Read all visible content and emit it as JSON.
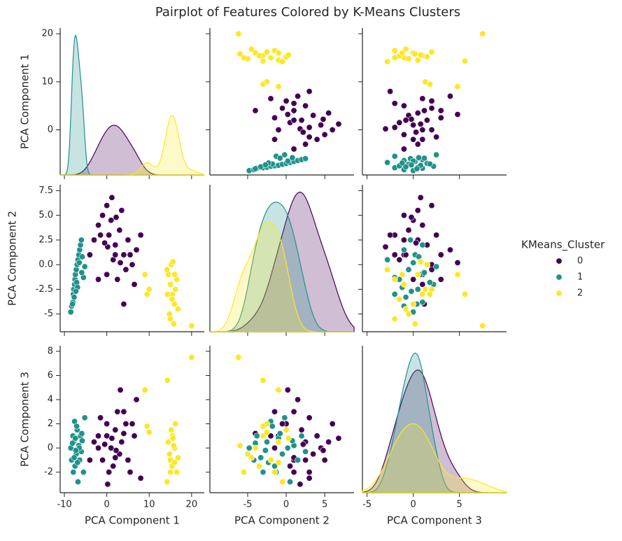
{
  "chart_data": {
    "type": "pairplot",
    "title": "Pairplot of Features Colored by K-Means Clusters",
    "legend_title": "KMeans_Cluster",
    "legend_position": "right",
    "variables": [
      {
        "label": "PCA Component 1",
        "xlim": [
          -11,
          23
        ],
        "xticks": [
          -10,
          0,
          10,
          20
        ],
        "ylim": [
          -9.4,
          21.2
        ],
        "yticks": [
          0,
          10,
          20
        ]
      },
      {
        "label": "PCA Component 2",
        "xlim": [
          -9.9,
          8.8
        ],
        "xticks": [
          -5,
          0,
          5
        ],
        "ylim": [
          -6.8,
          8.1
        ],
        "yticks": [
          -5.0,
          {
            "value": -2.5,
            "label": "-2.5"
          },
          {
            "value": 0,
            "label": "0.0"
          },
          {
            "value": 2.5,
            "label": "2.5"
          },
          {
            "value": 5,
            "label": "5.0"
          },
          {
            "value": 7.5,
            "label": "7.5"
          }
        ]
      },
      {
        "label": "PCA Component 3",
        "xlim": [
          -5.5,
          10.1
        ],
        "xticks": [
          -5,
          0,
          5
        ],
        "ylim": [
          -3.7,
          8.46
        ],
        "yticks": [
          -2,
          0,
          2,
          4,
          6,
          8
        ]
      }
    ],
    "series": [
      {
        "name": "0",
        "color": "#440154",
        "points": [
          [
            -3,
            2.5,
            0.5
          ],
          [
            -2,
            4,
            1
          ],
          [
            -1,
            5,
            -1
          ],
          [
            0,
            6,
            2
          ],
          [
            0.5,
            3,
            -2
          ],
          [
            1,
            4.5,
            0
          ],
          [
            2,
            2,
            1.5
          ],
          [
            3,
            3.5,
            -0.5
          ],
          [
            4,
            1,
            3
          ],
          [
            5,
            2.5,
            -1
          ],
          [
            6,
            0,
            2
          ],
          [
            7,
            1.5,
            4
          ],
          [
            8,
            3,
            -2.5
          ],
          [
            -4,
            1,
            -1
          ],
          [
            -2,
            -1.5,
            0
          ],
          [
            0,
            -1,
            1
          ],
          [
            1.5,
            0.5,
            -1.5
          ],
          [
            2.5,
            -1.5,
            3
          ],
          [
            3.5,
            5.5,
            0.5
          ],
          [
            4.5,
            -0.5,
            2
          ],
          [
            5.5,
            1,
            -2
          ],
          [
            6.5,
            -2,
            1
          ],
          [
            -1.5,
            3,
            2.5
          ],
          [
            0.2,
            1.8,
            -3
          ],
          [
            1.2,
            6.8,
            0.8
          ],
          [
            2.2,
            4.8,
            -0.2
          ],
          [
            3.2,
            0.2,
            4.8
          ],
          [
            -0.5,
            2.2,
            0.3
          ],
          [
            2,
            1,
            -0.8
          ],
          [
            4,
            -4,
            1.2
          ]
        ]
      },
      {
        "name": "1",
        "color": "#21918c",
        "points": [
          [
            -8.5,
            -4.8,
            0
          ],
          [
            -8.3,
            -4.2,
            -1
          ],
          [
            -8,
            -3.8,
            1
          ],
          [
            -7.9,
            -3,
            -2
          ],
          [
            -7.8,
            -2.5,
            0.5
          ],
          [
            -7.6,
            -2,
            2.2
          ],
          [
            -7.5,
            -1.5,
            -1.5
          ],
          [
            -7.4,
            -1,
            0.8
          ],
          [
            -7.2,
            -0.5,
            -0.5
          ],
          [
            -7,
            0,
            1.5
          ],
          [
            -6.8,
            0.5,
            -2.8
          ],
          [
            -6.6,
            1,
            0.2
          ],
          [
            -6.4,
            1.5,
            -1
          ],
          [
            -6.2,
            2,
            1
          ],
          [
            -6,
            2.5,
            -0.3
          ],
          [
            -5.8,
            0.8,
            0.6
          ],
          [
            -5.5,
            -1.3,
            -2
          ],
          [
            -5.2,
            -0.2,
            2.5
          ],
          [
            -7.7,
            -3.3,
            -0.8
          ],
          [
            -8.1,
            -4,
            0.4
          ],
          [
            -7.1,
            -1.8,
            1.8
          ],
          [
            -6.9,
            -2.3,
            -1.2
          ],
          [
            -6.5,
            0.2,
            0
          ],
          [
            -5.9,
            -0.8,
            1.2
          ],
          [
            -7.3,
            -2.7,
            -0.2
          ]
        ]
      },
      {
        "name": "2",
        "color": "#fde725",
        "points": [
          [
            14.5,
            -1,
            0.5
          ],
          [
            15,
            -2,
            -1
          ],
          [
            15.5,
            -3,
            1
          ],
          [
            16,
            -4,
            0
          ],
          [
            16.5,
            -1.5,
            -2
          ],
          [
            15.2,
            0,
            1.5
          ],
          [
            14.8,
            -5,
            -0.5
          ],
          [
            15.8,
            -6,
            0.2
          ],
          [
            16.2,
            -2.5,
            2
          ],
          [
            15.4,
            -3.5,
            -1.5
          ],
          [
            14.2,
            -0.5,
            -2.8
          ],
          [
            16.8,
            -4.5,
            -0.8
          ],
          [
            15.6,
            0.3,
            0.8
          ],
          [
            16,
            -1,
            -1.2
          ],
          [
            20,
            -6.2,
            7.5
          ],
          [
            14.3,
            -3,
            5.6
          ],
          [
            9.5,
            -3,
            1.8
          ],
          [
            10,
            -2.5,
            1.3
          ],
          [
            9,
            -1,
            4.8
          ],
          [
            15,
            -5.5,
            -2
          ]
        ]
      }
    ]
  }
}
